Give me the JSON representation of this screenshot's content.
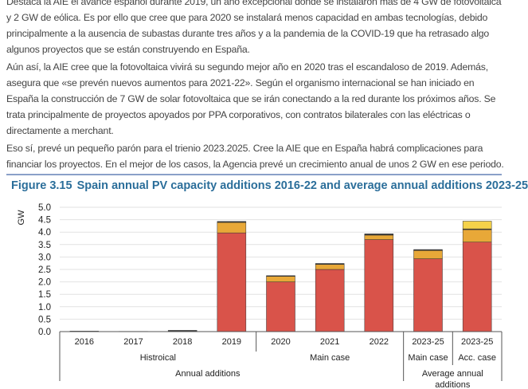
{
  "article": {
    "paragraphs": [
      "Destaca la AIE el avance español durante 2019, un año excepcional donde se instalaron más de 4 GW de fotovoltaica y 2 GW de eólica. Es por ello que cree que para 2020 se instalará menos capacidad en ambas tecnologías, debido principalmente a la ausencia de subastas durante tres años y a la pandemia de la COVID-19 que ha retrasado algo algunos proyectos que se están construyendo en España.",
      "Aún así, la AIE cree que la fotovoltaica vivirá su segundo mejor año en 2020 tras el escandaloso de 2019. Además, asegura que «se prevén nuevos aumentos para 2021-22». Según el organismo internacional se han iniciado en España la construcción de 7 GW de solar fotovoltaica que se irán conectando a la red durante los próximos años. Se trata principalmente de proyectos apoyados por PPA corporativos, con contratos bilaterales con las eléctricas o directamente a merchant.",
      "Eso sí, prevé un pequeño parón para el trienio 2023.2025. Cree la AIE que en España habrá complicaciones para financiar los proyectos. En el mejor de los casos, la Agencia prevé un crecimiento anual de unos 2 GW en ese periodo."
    ]
  },
  "chart_data": {
    "type": "bar",
    "stacked": true,
    "figure_number": "Figure 3.15",
    "title": "Spain annual PV capacity additions 2016-22 and average annual additions 2023-25",
    "ylabel": "GW",
    "ylim": [
      0,
      5
    ],
    "yticks": [
      "0.0",
      "0.5",
      "1.0",
      "1.5",
      "2.0",
      "2.5",
      "3.0",
      "3.5",
      "4.0",
      "4.5",
      "5.0"
    ],
    "grid": true,
    "categories": [
      "2016",
      "2017",
      "2018",
      "2019",
      "2020",
      "2021",
      "2022",
      "2023-25",
      "2023-25"
    ],
    "subcategories": [
      "",
      "",
      "",
      "",
      "",
      "",
      "",
      "Main case",
      "Acc. case"
    ],
    "groups": [
      {
        "label": "Histroical",
        "span": [
          0,
          3
        ]
      },
      {
        "label": "Main case",
        "span": [
          4,
          6
        ]
      }
    ],
    "supergroups": [
      {
        "label": "Annual additions",
        "span": [
          0,
          6
        ]
      },
      {
        "label": "Average annual additions",
        "span": [
          7,
          8
        ]
      }
    ],
    "series": [
      {
        "color": "#d9534a",
        "values": [
          0,
          0,
          0,
          3.97,
          2.0,
          2.5,
          3.7,
          2.93,
          3.6
        ]
      },
      {
        "color": "#e8a838",
        "values": [
          0,
          0,
          0,
          0.42,
          0.22,
          0.2,
          0.18,
          0.33,
          0.5
        ]
      },
      {
        "color": "#3a3a3a",
        "values": [
          0.02,
          0.01,
          0.05,
          0.04,
          0.03,
          0.04,
          0.05,
          0.04,
          0.03
        ]
      },
      {
        "color": "#f5d24a",
        "values": [
          0,
          0,
          0,
          0,
          0,
          0,
          0,
          0,
          0.31
        ]
      }
    ]
  }
}
